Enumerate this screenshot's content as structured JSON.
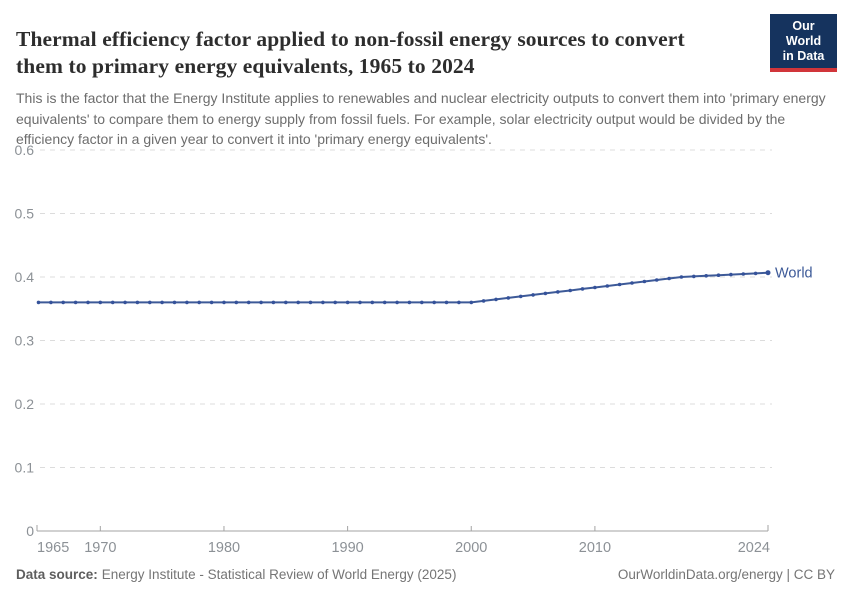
{
  "header": {
    "title": "Thermal efficiency factor applied to non-fossil energy sources to convert them to primary energy equivalents, 1965 to 2024",
    "subtitle": "This is the factor that the Energy Institute applies to renewables and nuclear electricity outputs to convert them into 'primary energy equivalents' to compare them to energy supply from fossil fuels. For example, solar electricity output would be divided by the efficiency factor in a given year to convert it into 'primary energy equivalents'.",
    "logo": {
      "line1": "Our World",
      "line2": "in Data"
    }
  },
  "chart_data": {
    "type": "line",
    "title": "Thermal efficiency factor applied to non-fossil energy sources, 1965 to 2024",
    "xlabel": "",
    "ylabel": "",
    "xlim": [
      1965,
      2024
    ],
    "ylim": [
      0,
      0.6
    ],
    "grid": "horizontal-dashed",
    "legend": "inline-end-label",
    "xticks": [
      1965,
      1970,
      1980,
      1990,
      2000,
      2010,
      2024
    ],
    "yticks": [
      0,
      0.1,
      0.2,
      0.3,
      0.4,
      0.5,
      0.6
    ],
    "ytick_labels": [
      "0",
      "0.1",
      "0.2",
      "0.3",
      "0.4",
      "0.5",
      "0.6"
    ],
    "x": [
      1965,
      1966,
      1967,
      1968,
      1969,
      1970,
      1971,
      1972,
      1973,
      1974,
      1975,
      1976,
      1977,
      1978,
      1979,
      1980,
      1981,
      1982,
      1983,
      1984,
      1985,
      1986,
      1987,
      1988,
      1989,
      1990,
      1991,
      1992,
      1993,
      1994,
      1995,
      1996,
      1997,
      1998,
      1999,
      2000,
      2001,
      2002,
      2003,
      2004,
      2005,
      2006,
      2007,
      2008,
      2009,
      2010,
      2011,
      2012,
      2013,
      2014,
      2015,
      2016,
      2017,
      2018,
      2019,
      2020,
      2021,
      2022,
      2023,
      2024
    ],
    "series": [
      {
        "name": "World",
        "color": "#3d5a98",
        "values": [
          0.36,
          0.36,
          0.36,
          0.36,
          0.36,
          0.36,
          0.36,
          0.36,
          0.36,
          0.36,
          0.36,
          0.36,
          0.36,
          0.36,
          0.36,
          0.36,
          0.36,
          0.36,
          0.36,
          0.36,
          0.36,
          0.36,
          0.36,
          0.36,
          0.36,
          0.36,
          0.36,
          0.36,
          0.36,
          0.36,
          0.36,
          0.36,
          0.36,
          0.36,
          0.36,
          0.36,
          0.3624,
          0.3647,
          0.3671,
          0.3694,
          0.3718,
          0.3741,
          0.3765,
          0.3788,
          0.3812,
          0.3835,
          0.3859,
          0.3882,
          0.3906,
          0.3929,
          0.3953,
          0.3976,
          0.4,
          0.401,
          0.4019,
          0.4029,
          0.4038,
          0.4048,
          0.4057,
          0.4067
        ]
      }
    ]
  },
  "footer": {
    "source_label": "Data source:",
    "source_text": "Energy Institute - Statistical Review of World Energy (2025)",
    "rights": "OurWorldinData.org/energy | CC BY"
  },
  "colors": {
    "line": "#3d5a98",
    "point": "#35529a",
    "grid": "#dcdcdc",
    "axis": "#a3a3a3",
    "tick_label": "#8c9196",
    "logo_bg": "#15335e",
    "logo_stripe": "#d1353a"
  }
}
